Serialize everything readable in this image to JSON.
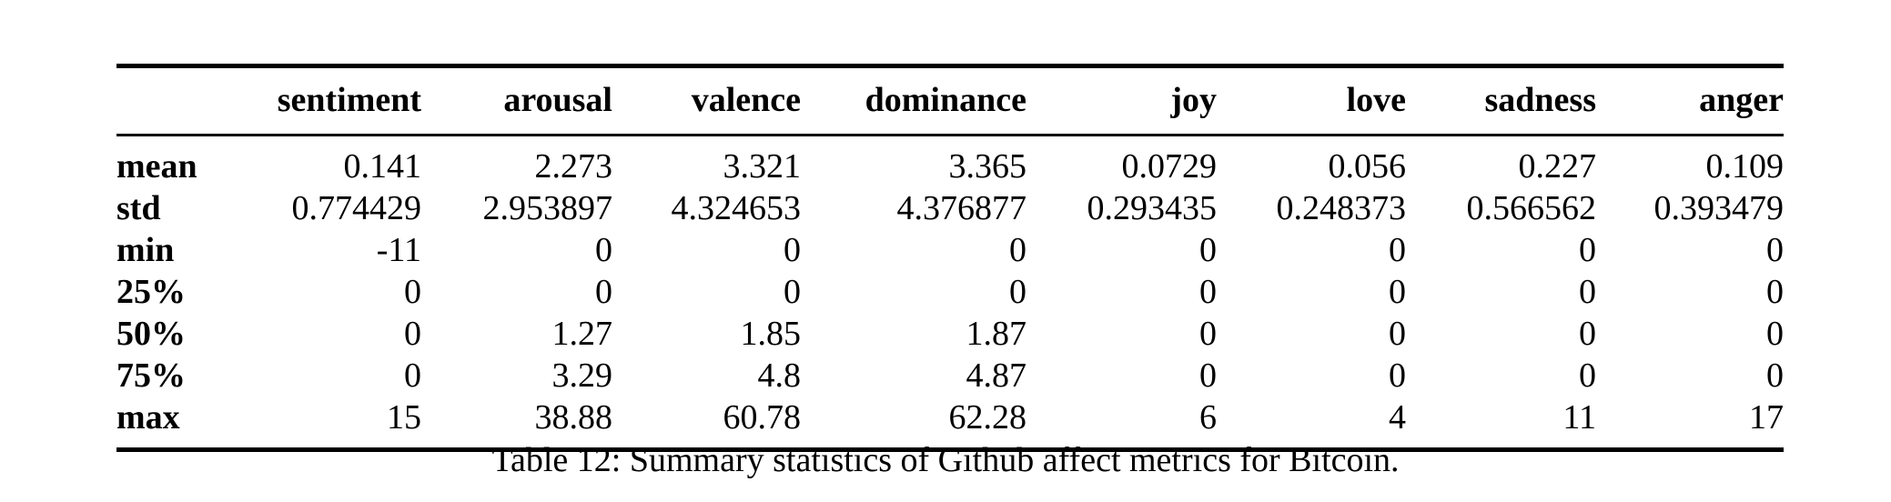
{
  "table": {
    "corner": "",
    "columns": [
      "sentiment",
      "arousal",
      "valence",
      "dominance",
      "joy",
      "love",
      "sadness",
      "anger"
    ],
    "rows": [
      {
        "label": "mean",
        "values": [
          "0.141",
          "2.273",
          "3.321",
          "3.365",
          "0.0729",
          "0.056",
          "0.227",
          "0.109"
        ]
      },
      {
        "label": "std",
        "values": [
          "0.774429",
          "2.953897",
          "4.324653",
          "4.376877",
          "0.293435",
          "0.248373",
          "0.566562",
          "0.393479"
        ]
      },
      {
        "label": "min",
        "values": [
          "-11",
          "0",
          "0",
          "0",
          "0",
          "0",
          "0",
          "0"
        ]
      },
      {
        "label": "25%",
        "values": [
          "0",
          "0",
          "0",
          "0",
          "0",
          "0",
          "0",
          "0"
        ]
      },
      {
        "label": "50%",
        "values": [
          "0",
          "1.27",
          "1.85",
          "1.87",
          "0",
          "0",
          "0",
          "0"
        ]
      },
      {
        "label": "75%",
        "values": [
          "0",
          "3.29",
          "4.8",
          "4.87",
          "0",
          "0",
          "0",
          "0"
        ]
      },
      {
        "label": "max",
        "values": [
          "15",
          "38.88",
          "60.78",
          "62.28",
          "6",
          "4",
          "11",
          "17"
        ]
      }
    ]
  },
  "caption": "Table 12: Summary statistics of Github affect metrics for Bitcoin."
}
